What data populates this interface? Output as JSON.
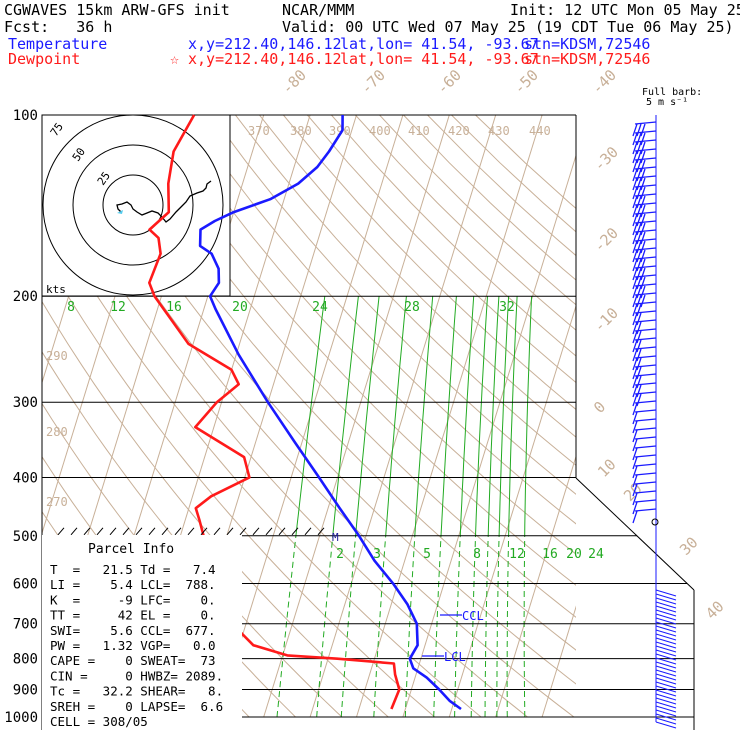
{
  "header": {
    "model": "CGWAVES 15km ARW-GFS init",
    "org": "NCAR/MMM",
    "init": "Init: 12 UTC Mon 05 May 25",
    "fcst": "Fcst:   36 h",
    "valid": "Valid: 00 UTC Wed 07 May 25 (19 CDT Tue 06 May 25)",
    "temp_label": "Temperature",
    "temp_xy": "x,y=212.40,146.12",
    "temp_latlon": "lat,lon= 41.54, -93.67",
    "temp_stn": "stn=KDSM,72546",
    "dew_label": "Dewpoint",
    "dew_star": "☆",
    "dew_xy": "x,y=212.40,146.12",
    "dew_latlon": "lat,lon= 41.54, -93.67",
    "dew_stn": "stn=KDSM,72546",
    "barb_title": "Full barb:",
    "barb_units": "5 m s⁻¹"
  },
  "colors": {
    "temperature": "#1a1aff",
    "dewpoint": "#ff1a1a",
    "isotherm": "#c8b098",
    "mixing_ratio": "#22aa22",
    "hodo_marker": "#55ccee"
  },
  "hodograph": {
    "rings": [
      "75",
      "50",
      "25"
    ],
    "units": "kts"
  },
  "parcel": {
    "title": "Parcel Info",
    "lines": [
      "T  =   21.5 Td =   7.4",
      "LI =    5.4 LCL=  788.",
      "K  =     -9 LFC=    0.",
      "TT =     42 EL =    0.",
      "SWI=    5.6 CCL=  677.",
      "PW =   1.32 VGP=   0.0",
      "CAPE =    0 SWEAT=  73",
      "CIN =     0 HWBZ= 2089.",
      "Tc =   32.2 SHEAR=   8.",
      "SREH =    0 LAPSE=  6.6",
      "CELL = 308/05"
    ]
  },
  "annotations": {
    "ccl": "CCL",
    "lcl": "LCL",
    "m_marker": "M"
  },
  "chart_data": {
    "type": "line",
    "title": "",
    "xlabel": "",
    "ylabel": "",
    "y_axis_scale": "log-pressure",
    "pressure_ticks_hPa": [
      "100",
      "200",
      "300",
      "400",
      "500",
      "600",
      "700",
      "800",
      "900",
      "1000"
    ],
    "ylim_hPa": [
      1000,
      100
    ],
    "xlim_C_at_1000hPa": [
      -40,
      40
    ],
    "skew_deg_C_per_decade": 40,
    "isotherm_labels": [
      "-80",
      "-70",
      "-60",
      "-50",
      "-40",
      "-30",
      "-20",
      "-10",
      "0",
      "10",
      "20",
      "30",
      "40"
    ],
    "theta_labels": [
      "370",
      "380",
      "390",
      "400",
      "410",
      "420",
      "430",
      "440",
      "290",
      "280",
      "270"
    ],
    "mixing_ratio_upper_labels": [
      "8",
      "12",
      "16",
      "20",
      "24",
      "28",
      "32"
    ],
    "mixing_ratio_lower_labels": [
      "2",
      "3",
      "5",
      "8",
      "12",
      "16",
      "20",
      "24"
    ],
    "grid": true,
    "series": [
      {
        "name": "Temperature",
        "points_hPa_C": [
          [
            970,
            22.0
          ],
          [
            940,
            19.0
          ],
          [
            900,
            16.0
          ],
          [
            860,
            12.5
          ],
          [
            830,
            9.0
          ],
          [
            800,
            7.6
          ],
          [
            760,
            8.4
          ],
          [
            700,
            6.8
          ],
          [
            650,
            3.5
          ],
          [
            600,
            -1.0
          ],
          [
            550,
            -6.5
          ],
          [
            500,
            -11.5
          ],
          [
            450,
            -17.5
          ],
          [
            400,
            -24.0
          ],
          [
            350,
            -31.5
          ],
          [
            300,
            -40.0
          ],
          [
            250,
            -49.5
          ],
          [
            210,
            -57.5
          ],
          [
            200,
            -59.5
          ],
          [
            190,
            -58.5
          ],
          [
            180,
            -59.5
          ],
          [
            170,
            -62.0
          ],
          [
            165,
            -65.0
          ],
          [
            155,
            -66.0
          ],
          [
            150,
            -63.5
          ],
          [
            145,
            -60.0
          ],
          [
            138,
            -53.0
          ],
          [
            130,
            -48.0
          ],
          [
            122,
            -45.0
          ],
          [
            115,
            -43.5
          ],
          [
            106,
            -42.0
          ],
          [
            100,
            -43.0
          ]
        ]
      },
      {
        "name": "Dewpoint",
        "points_hPa_C": [
          [
            970,
            7.0
          ],
          [
            900,
            7.4
          ],
          [
            850,
            5.5
          ],
          [
            815,
            4.5
          ],
          [
            800,
            -8.0
          ],
          [
            790,
            -19.0
          ],
          [
            760,
            -27.0
          ],
          [
            700,
            -33.0
          ],
          [
            650,
            -33.0
          ],
          [
            600,
            -35.0
          ],
          [
            550,
            -39.0
          ],
          [
            500,
            -45.0
          ],
          [
            470,
            -47.0
          ],
          [
            450,
            -48.5
          ],
          [
            430,
            -46.0
          ],
          [
            400,
            -39.0
          ],
          [
            370,
            -41.5
          ],
          [
            330,
            -54.0
          ],
          [
            300,
            -51.0
          ],
          [
            280,
            -47.5
          ],
          [
            265,
            -50.0
          ],
          [
            240,
            -61.0
          ],
          [
            220,
            -66.0
          ],
          [
            200,
            -71.5
          ],
          [
            190,
            -73.5
          ],
          [
            170,
            -73.0
          ],
          [
            160,
            -74.5
          ],
          [
            155,
            -77.0
          ],
          [
            145,
            -74.0
          ],
          [
            130,
            -76.0
          ],
          [
            115,
            -77.0
          ],
          [
            100,
            -75.0
          ]
        ]
      }
    ]
  }
}
